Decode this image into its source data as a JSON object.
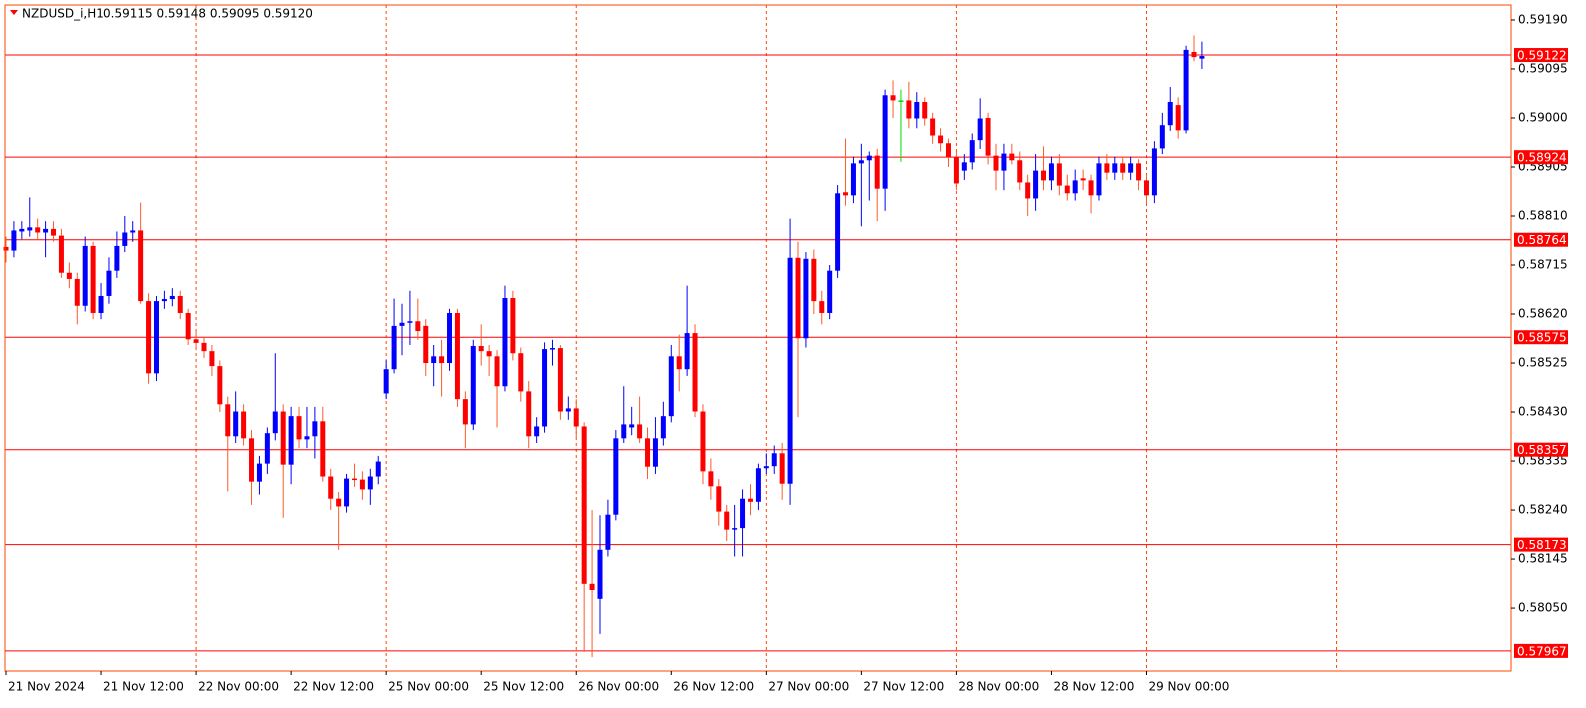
{
  "chart_data": {
    "type": "candlestick",
    "title": "NZDUSD_i,H1",
    "subtitle": "0.59115 0.59148 0.59095 0.59120",
    "bull_color": "#0000ff",
    "bear_color": "#ff0000",
    "bear_wick_color": "#ff5a28",
    "doji_color": "#00e000",
    "grid_color": "#ff4500",
    "level_color": "#ff0000",
    "ylim": [
      0.57928,
      0.59219
    ],
    "yticks": [
      {
        "value": 0.5919,
        "label": "0.59190"
      },
      0.59095,
      {
        "value": 0.59,
        "label": "0.59000"
      },
      0.58905,
      {
        "value": 0.5881,
        "label": "0.58810"
      },
      0.58715,
      {
        "value": 0.5862,
        "label": "0.58620"
      },
      0.58525,
      {
        "value": 0.5843,
        "label": "0.58430"
      },
      0.58335,
      {
        "value": 0.5824,
        "label": "0.58240"
      },
      0.58145,
      {
        "value": 0.5805,
        "label": "0.58050"
      }
    ],
    "levels": [
      0.59122,
      0.58924,
      0.58764,
      0.58575,
      0.58357,
      0.58173,
      0.57967
    ],
    "categories": [
      "21 Nov 2024",
      null,
      null,
      null,
      null,
      null,
      null,
      null,
      null,
      null,
      null,
      null,
      "21 Nov 12:00",
      null,
      null,
      null,
      null,
      null,
      null,
      null,
      null,
      null,
      null,
      null,
      "22 Nov 00:00",
      null,
      null,
      null,
      null,
      null,
      null,
      null,
      null,
      null,
      null,
      null,
      "22 Nov 12:00",
      null,
      null,
      null,
      null,
      null,
      null,
      null,
      null,
      null,
      null,
      null,
      "25 Nov 00:00",
      null,
      null,
      null,
      null,
      null,
      null,
      null,
      null,
      null,
      null,
      null,
      "25 Nov 12:00",
      null,
      null,
      null,
      null,
      null,
      null,
      null,
      null,
      null,
      null,
      null,
      "26 Nov 00:00",
      null,
      null,
      null,
      null,
      null,
      null,
      null,
      null,
      null,
      null,
      null,
      "26 Nov 12:00",
      null,
      null,
      null,
      null,
      null,
      null,
      null,
      null,
      null,
      null,
      null,
      "27 Nov 00:00",
      null,
      null,
      null,
      null,
      null,
      null,
      null,
      null,
      null,
      null,
      null,
      "27 Nov 12:00",
      null,
      null,
      null,
      null,
      null,
      null,
      null,
      null,
      null,
      null,
      null,
      "28 Nov 00:00",
      null,
      null,
      null,
      null,
      null,
      null,
      null,
      null,
      null,
      null,
      null,
      "28 Nov 12:00",
      null,
      null,
      null,
      null,
      null,
      null,
      null,
      null,
      null,
      null,
      null,
      "29 Nov 00:00",
      null,
      null,
      null,
      null,
      null,
      null,
      null
    ],
    "ohlc": [
      [
        0.5875,
        0.5877,
        0.5872,
        0.58743
      ],
      [
        0.58743,
        0.588,
        0.5873,
        0.58782
      ],
      [
        0.5878,
        0.588,
        0.58765,
        0.58785
      ],
      [
        0.58782,
        0.58846,
        0.5877,
        0.58788
      ],
      [
        0.58788,
        0.58805,
        0.58765,
        0.58778
      ],
      [
        0.58778,
        0.588,
        0.5873,
        0.58785
      ],
      [
        0.58785,
        0.588,
        0.5876,
        0.58772
      ],
      [
        0.58772,
        0.58785,
        0.5869,
        0.587
      ],
      [
        0.587,
        0.5872,
        0.5867,
        0.58688
      ],
      [
        0.58688,
        0.587,
        0.586,
        0.58636
      ],
      [
        0.58636,
        0.5877,
        0.58625,
        0.58752
      ],
      [
        0.58752,
        0.5876,
        0.5861,
        0.58622
      ],
      [
        0.58622,
        0.5868,
        0.5861,
        0.58655
      ],
      [
        0.58655,
        0.5873,
        0.5864,
        0.58704
      ],
      [
        0.58704,
        0.5878,
        0.5869,
        0.58752
      ],
      [
        0.58752,
        0.5881,
        0.5874,
        0.58778
      ],
      [
        0.58778,
        0.588,
        0.5876,
        0.58782
      ],
      [
        0.58782,
        0.58836,
        0.5864,
        0.58645
      ],
      [
        0.58645,
        0.5866,
        0.58485,
        0.58505
      ],
      [
        0.58505,
        0.58655,
        0.5849,
        0.58645
      ],
      [
        0.58645,
        0.58665,
        0.5863,
        0.58649
      ],
      [
        0.58649,
        0.5867,
        0.58635,
        0.58655
      ],
      [
        0.58655,
        0.58665,
        0.5861,
        0.58622
      ],
      [
        0.58622,
        0.5863,
        0.5856,
        0.58571
      ],
      [
        0.58571,
        0.5859,
        0.5855,
        0.58564
      ],
      [
        0.58564,
        0.58575,
        0.58535,
        0.58548
      ],
      [
        0.58548,
        0.5856,
        0.585,
        0.58519
      ],
      [
        0.58519,
        0.5853,
        0.5843,
        0.58445
      ],
      [
        0.58445,
        0.5846,
        0.58276,
        0.58383
      ],
      [
        0.58383,
        0.5847,
        0.5837,
        0.58431
      ],
      [
        0.58431,
        0.58445,
        0.58365,
        0.58379
      ],
      [
        0.58379,
        0.58395,
        0.5825,
        0.58295
      ],
      [
        0.58295,
        0.58345,
        0.5827,
        0.5833
      ],
      [
        0.5833,
        0.584,
        0.5831,
        0.58389
      ],
      [
        0.58389,
        0.58544,
        0.58375,
        0.58431
      ],
      [
        0.58431,
        0.58445,
        0.58225,
        0.58328
      ],
      [
        0.58328,
        0.5844,
        0.5829,
        0.58422
      ],
      [
        0.58422,
        0.5844,
        0.5836,
        0.58377
      ],
      [
        0.58377,
        0.5844,
        0.5836,
        0.58383
      ],
      [
        0.58383,
        0.5844,
        0.5834,
        0.58412
      ],
      [
        0.58412,
        0.5844,
        0.58295,
        0.58305
      ],
      [
        0.58305,
        0.5832,
        0.5824,
        0.58262
      ],
      [
        0.58262,
        0.58275,
        0.58163,
        0.58247
      ],
      [
        0.58247,
        0.5831,
        0.58235,
        0.58301
      ],
      [
        0.58301,
        0.5833,
        0.58285,
        0.58299
      ],
      [
        0.58299,
        0.58315,
        0.5826,
        0.5828
      ],
      [
        0.5828,
        0.5832,
        0.5825,
        0.58305
      ],
      [
        0.58305,
        0.58345,
        0.5829,
        0.58334
      ],
      [
        0.58466,
        0.5853,
        0.58455,
        0.58513
      ],
      [
        0.58513,
        0.5865,
        0.58505,
        0.58597
      ],
      [
        0.58597,
        0.5864,
        0.5854,
        0.58603
      ],
      [
        0.58603,
        0.58665,
        0.5856,
        0.58606
      ],
      [
        0.58606,
        0.5865,
        0.5857,
        0.58587
      ],
      [
        0.58597,
        0.5861,
        0.585,
        0.58525
      ],
      [
        0.58525,
        0.5856,
        0.5848,
        0.58538
      ],
      [
        0.58538,
        0.5857,
        0.5846,
        0.58525
      ],
      [
        0.58525,
        0.5863,
        0.5851,
        0.58622
      ],
      [
        0.58622,
        0.5863,
        0.5844,
        0.58455
      ],
      [
        0.58455,
        0.5847,
        0.5836,
        0.58406
      ],
      [
        0.58406,
        0.5857,
        0.58395,
        0.58558
      ],
      [
        0.58558,
        0.586,
        0.5852,
        0.58548
      ],
      [
        0.58548,
        0.5856,
        0.585,
        0.58538
      ],
      [
        0.58538,
        0.5855,
        0.584,
        0.5848
      ],
      [
        0.5848,
        0.58675,
        0.5847,
        0.58651
      ],
      [
        0.58651,
        0.58665,
        0.5853,
        0.58544
      ],
      [
        0.58544,
        0.58555,
        0.5845,
        0.5847
      ],
      [
        0.5847,
        0.5849,
        0.5836,
        0.58383
      ],
      [
        0.58383,
        0.5842,
        0.5837,
        0.58402
      ],
      [
        0.58402,
        0.58565,
        0.5839,
        0.58552
      ],
      [
        0.58552,
        0.5857,
        0.5852,
        0.58554
      ],
      [
        0.58554,
        0.5856,
        0.58415,
        0.58431
      ],
      [
        0.58431,
        0.5846,
        0.58415,
        0.58437
      ],
      [
        0.58437,
        0.58455,
        0.5838,
        0.58402
      ],
      [
        0.58402,
        0.5841,
        0.57965,
        0.58097
      ],
      [
        0.58097,
        0.5824,
        0.57955,
        0.58085
      ],
      [
        0.58068,
        0.5823,
        0.58,
        0.58163
      ],
      [
        0.58163,
        0.5826,
        0.5815,
        0.58231
      ],
      [
        0.58231,
        0.58395,
        0.5822,
        0.58379
      ],
      [
        0.58379,
        0.5848,
        0.5837,
        0.58406
      ],
      [
        0.584,
        0.5844,
        0.58385,
        0.58406
      ],
      [
        0.58406,
        0.5846,
        0.5837,
        0.58379
      ],
      [
        0.58379,
        0.584,
        0.583,
        0.58324
      ],
      [
        0.58324,
        0.5842,
        0.5831,
        0.58379
      ],
      [
        0.58379,
        0.5845,
        0.58365,
        0.58422
      ],
      [
        0.58422,
        0.5856,
        0.5841,
        0.58538
      ],
      [
        0.58538,
        0.5858,
        0.5847,
        0.58513
      ],
      [
        0.58513,
        0.58675,
        0.585,
        0.58583
      ],
      [
        0.58583,
        0.586,
        0.5842,
        0.58431
      ],
      [
        0.58431,
        0.58445,
        0.5829,
        0.58315
      ],
      [
        0.58315,
        0.5834,
        0.5826,
        0.58286
      ],
      [
        0.58286,
        0.583,
        0.5821,
        0.58237
      ],
      [
        0.58237,
        0.5825,
        0.5818,
        0.58202
      ],
      [
        0.58202,
        0.5825,
        0.5815,
        0.58205
      ],
      [
        0.58205,
        0.5828,
        0.5815,
        0.58262
      ],
      [
        0.58262,
        0.5829,
        0.5823,
        0.58256
      ],
      [
        0.58256,
        0.5833,
        0.5824,
        0.58321
      ],
      [
        0.58321,
        0.5835,
        0.5831,
        0.58325
      ],
      [
        0.58325,
        0.58365,
        0.5831,
        0.5835
      ],
      [
        0.5835,
        0.5837,
        0.5826,
        0.58291
      ],
      [
        0.58291,
        0.58805,
        0.5825,
        0.58729
      ],
      [
        0.58729,
        0.5876,
        0.5842,
        0.58573
      ],
      [
        0.58573,
        0.5874,
        0.58555,
        0.58727
      ],
      [
        0.58727,
        0.58745,
        0.5862,
        0.58645
      ],
      [
        0.58645,
        0.58665,
        0.586,
        0.58622
      ],
      [
        0.58622,
        0.58715,
        0.5861,
        0.58704
      ],
      [
        0.58704,
        0.5887,
        0.5869,
        0.58854
      ],
      [
        0.58856,
        0.5896,
        0.5883,
        0.5885
      ],
      [
        0.5885,
        0.58925,
        0.58835,
        0.58912
      ],
      [
        0.58912,
        0.5895,
        0.5879,
        0.58918
      ],
      [
        0.58918,
        0.58935,
        0.5884,
        0.58927
      ],
      [
        0.58927,
        0.5894,
        0.588,
        0.58863
      ],
      [
        0.58863,
        0.59055,
        0.5882,
        0.59044
      ],
      [
        0.59044,
        0.59073,
        0.59,
        0.59034
      ],
      [
        0.59034,
        0.59055,
        0.58915,
        0.59034
      ],
      [
        0.59034,
        0.5907,
        0.5898,
        0.58999
      ],
      [
        0.58999,
        0.5905,
        0.5898,
        0.59031
      ],
      [
        0.59031,
        0.5904,
        0.58985,
        0.58999
      ],
      [
        0.58999,
        0.5901,
        0.5895,
        0.58966
      ],
      [
        0.58966,
        0.5898,
        0.58935,
        0.58951
      ],
      [
        0.58951,
        0.5896,
        0.58905,
        0.58924
      ],
      [
        0.58924,
        0.58935,
        0.5886,
        0.58873
      ],
      [
        0.58898,
        0.5893,
        0.5888,
        0.58914
      ],
      [
        0.58914,
        0.5897,
        0.589,
        0.58957
      ],
      [
        0.58957,
        0.59038,
        0.5894,
        0.58999
      ],
      [
        0.59,
        0.5901,
        0.5891,
        0.58927
      ],
      [
        0.58927,
        0.5895,
        0.5886,
        0.58898
      ],
      [
        0.58898,
        0.5895,
        0.5886,
        0.58931
      ],
      [
        0.58931,
        0.5895,
        0.5891,
        0.58918
      ],
      [
        0.58918,
        0.58935,
        0.5886,
        0.58875
      ],
      [
        0.58875,
        0.5889,
        0.5881,
        0.58844
      ],
      [
        0.58844,
        0.5893,
        0.5882,
        0.58898
      ],
      [
        0.58898,
        0.58945,
        0.5886,
        0.58879
      ],
      [
        0.58879,
        0.58925,
        0.5886,
        0.58912
      ],
      [
        0.58912,
        0.5893,
        0.5885,
        0.58869
      ],
      [
        0.58869,
        0.5889,
        0.5884,
        0.58854
      ],
      [
        0.58854,
        0.589,
        0.5884,
        0.58879
      ],
      [
        0.58883,
        0.589,
        0.5886,
        0.58879
      ],
      [
        0.58879,
        0.5889,
        0.58815,
        0.5885
      ],
      [
        0.5885,
        0.58925,
        0.5884,
        0.58912
      ],
      [
        0.58912,
        0.5893,
        0.5888,
        0.58894
      ],
      [
        0.58894,
        0.58925,
        0.5888,
        0.58912
      ],
      [
        0.58912,
        0.58925,
        0.5888,
        0.58894
      ],
      [
        0.58894,
        0.58925,
        0.5888,
        0.58912
      ],
      [
        0.58912,
        0.5892,
        0.5886,
        0.58879
      ],
      [
        0.58879,
        0.5889,
        0.58835,
        0.5885
      ],
      [
        0.5885,
        0.58955,
        0.58835,
        0.58941
      ],
      [
        0.58941,
        0.5901,
        0.5893,
        0.58986
      ],
      [
        0.58986,
        0.5906,
        0.58975,
        0.59031
      ],
      [
        0.59025,
        0.5904,
        0.5896,
        0.58976
      ],
      [
        0.58976,
        0.5914,
        0.5897,
        0.59132
      ],
      [
        0.59128,
        0.5916,
        0.5911,
        0.59118
      ],
      [
        0.59115,
        0.59148,
        0.59095,
        0.5912
      ]
    ]
  }
}
